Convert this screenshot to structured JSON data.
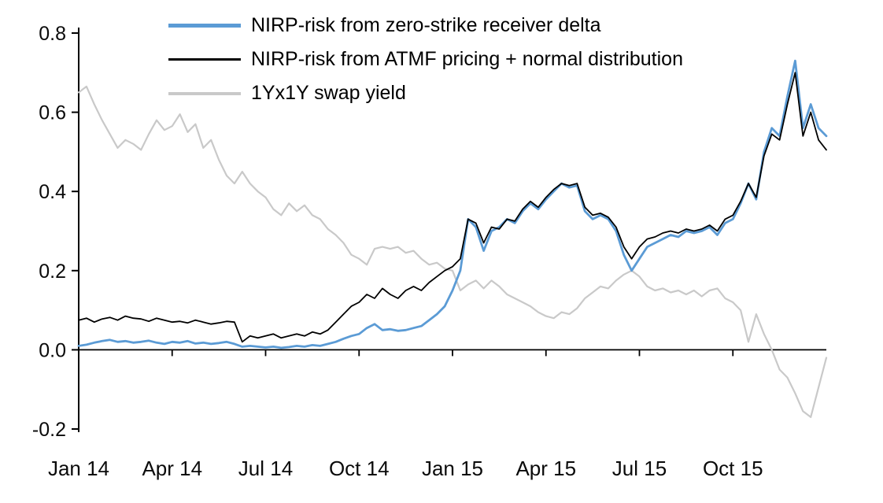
{
  "chart_data": {
    "type": "line",
    "title": "",
    "grid": false,
    "legend_position": "top-left-inside",
    "x_axis": {
      "unit": "months since Jan 2014",
      "range": [
        0,
        24
      ],
      "tick_positions": [
        0,
        3,
        6,
        9,
        12,
        15,
        18,
        21
      ],
      "tick_labels": [
        "Jan 14",
        "Apr 14",
        "Jul 14",
        "Oct 14",
        "Jan 15",
        "Apr 15",
        "Jul 15",
        "Oct 15"
      ]
    },
    "y_axis": {
      "range": [
        -0.2,
        0.8
      ],
      "ticks": [
        0.8,
        0.6,
        0.4,
        0.2,
        0.0,
        -0.2
      ],
      "tick_labels": [
        "0.8",
        "0.6",
        "0.4",
        "0.2",
        "0.0",
        "-0.2"
      ]
    },
    "x_step_months": 0.25,
    "draw_order": [
      2,
      0,
      1
    ],
    "series": [
      {
        "name": "NIRP-risk from zero-strike receiver delta",
        "color": "#5b9bd5",
        "width": 2.8,
        "values": [
          0.01,
          0.013,
          0.018,
          0.022,
          0.025,
          0.02,
          0.022,
          0.018,
          0.02,
          0.023,
          0.018,
          0.015,
          0.02,
          0.018,
          0.022,
          0.016,
          0.018,
          0.015,
          0.017,
          0.02,
          0.015,
          0.008,
          0.01,
          0.008,
          0.006,
          0.008,
          0.005,
          0.007,
          0.01,
          0.008,
          0.012,
          0.01,
          0.015,
          0.02,
          0.028,
          0.035,
          0.04,
          0.055,
          0.065,
          0.05,
          0.052,
          0.048,
          0.05,
          0.055,
          0.06,
          0.075,
          0.09,
          0.11,
          0.15,
          0.2,
          0.33,
          0.31,
          0.25,
          0.3,
          0.31,
          0.33,
          0.32,
          0.35,
          0.37,
          0.355,
          0.38,
          0.4,
          0.42,
          0.41,
          0.415,
          0.35,
          0.33,
          0.34,
          0.33,
          0.3,
          0.24,
          0.2,
          0.23,
          0.26,
          0.27,
          0.28,
          0.29,
          0.285,
          0.3,
          0.295,
          0.3,
          0.31,
          0.29,
          0.32,
          0.33,
          0.37,
          0.42,
          0.38,
          0.5,
          0.56,
          0.54,
          0.64,
          0.73,
          0.56,
          0.62,
          0.56,
          0.54
        ]
      },
      {
        "name": "NIRP-risk from ATMF pricing + normal distribution",
        "color": "#000000",
        "width": 1.8,
        "values": [
          0.075,
          0.08,
          0.07,
          0.078,
          0.082,
          0.075,
          0.085,
          0.08,
          0.078,
          0.072,
          0.08,
          0.075,
          0.07,
          0.072,
          0.068,
          0.075,
          0.07,
          0.065,
          0.068,
          0.072,
          0.07,
          0.02,
          0.035,
          0.03,
          0.035,
          0.04,
          0.03,
          0.035,
          0.04,
          0.035,
          0.045,
          0.04,
          0.05,
          0.07,
          0.09,
          0.11,
          0.12,
          0.14,
          0.13,
          0.155,
          0.14,
          0.13,
          0.15,
          0.16,
          0.15,
          0.17,
          0.185,
          0.2,
          0.21,
          0.23,
          0.33,
          0.32,
          0.27,
          0.31,
          0.305,
          0.33,
          0.325,
          0.355,
          0.375,
          0.36,
          0.385,
          0.405,
          0.42,
          0.415,
          0.42,
          0.36,
          0.34,
          0.345,
          0.335,
          0.31,
          0.26,
          0.23,
          0.26,
          0.28,
          0.285,
          0.295,
          0.3,
          0.295,
          0.305,
          0.3,
          0.305,
          0.315,
          0.3,
          0.33,
          0.34,
          0.375,
          0.42,
          0.385,
          0.49,
          0.545,
          0.53,
          0.62,
          0.7,
          0.54,
          0.6,
          0.53,
          0.505
        ]
      },
      {
        "name": "1Yx1Y swap yield",
        "color": "#c9c9c9",
        "width": 2.2,
        "values": [
          0.65,
          0.665,
          0.62,
          0.58,
          0.545,
          0.51,
          0.53,
          0.52,
          0.505,
          0.545,
          0.58,
          0.555,
          0.565,
          0.595,
          0.55,
          0.57,
          0.51,
          0.53,
          0.48,
          0.44,
          0.42,
          0.45,
          0.42,
          0.4,
          0.385,
          0.355,
          0.34,
          0.37,
          0.35,
          0.365,
          0.34,
          0.33,
          0.305,
          0.29,
          0.27,
          0.24,
          0.23,
          0.215,
          0.255,
          0.26,
          0.255,
          0.26,
          0.245,
          0.25,
          0.23,
          0.215,
          0.22,
          0.205,
          0.2,
          0.15,
          0.165,
          0.175,
          0.155,
          0.175,
          0.16,
          0.14,
          0.13,
          0.12,
          0.11,
          0.095,
          0.085,
          0.08,
          0.095,
          0.09,
          0.105,
          0.13,
          0.145,
          0.16,
          0.155,
          0.175,
          0.19,
          0.2,
          0.185,
          0.16,
          0.15,
          0.155,
          0.145,
          0.15,
          0.14,
          0.15,
          0.135,
          0.15,
          0.155,
          0.13,
          0.12,
          0.1,
          0.02,
          0.09,
          0.04,
          0.0,
          -0.05,
          -0.07,
          -0.11,
          -0.155,
          -0.17,
          -0.095,
          -0.02
        ]
      }
    ]
  }
}
